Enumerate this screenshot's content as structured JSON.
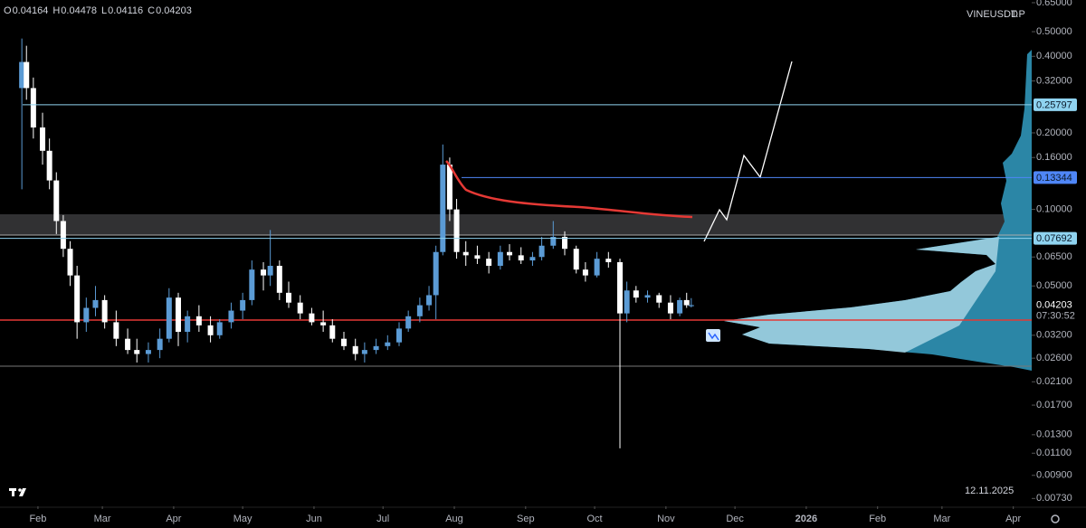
{
  "chart_data": {
    "type": "candlestick",
    "symbol": "VINEUSDT.P",
    "interval": "D",
    "ohlc": [
      {
        "label": "O",
        "value": "0.04164"
      },
      {
        "label": "H",
        "value": "0.04478"
      },
      {
        "label": "L",
        "value": "0.04116"
      },
      {
        "label": "C",
        "value": "0.04203"
      }
    ],
    "log_scale": true,
    "grid": false,
    "series": [
      {
        "up_color": "#5b9bd5",
        "down_color": "#ffffff",
        "x": [
          -7,
          -5,
          -2,
          2,
          5,
          8,
          11,
          14,
          17,
          21,
          25,
          29,
          34,
          39,
          43,
          48,
          53,
          57,
          61,
          65,
          70,
          75,
          79,
          84,
          89,
          93,
          98,
          101,
          105,
          109,
          114,
          119,
          124,
          128,
          133,
          138,
          142,
          147,
          152,
          157,
          161,
          166,
          170,
          173,
          176,
          179,
          182,
          186,
          191,
          196,
          201,
          205,
          210,
          215,
          219,
          224,
          229,
          234,
          238,
          243,
          248,
          253,
          256,
          260,
          265,
          270,
          275,
          279,
          282,
          284
        ],
        "open": [
          0.3,
          0.38,
          0.3,
          0.21,
          0.17,
          0.13,
          0.09,
          0.07,
          0.055,
          0.036,
          0.041,
          0.044,
          0.036,
          0.031,
          0.028,
          0.027,
          0.028,
          0.031,
          0.045,
          0.033,
          0.038,
          0.035,
          0.032,
          0.036,
          0.04,
          0.044,
          0.058,
          0.055,
          0.06,
          0.047,
          0.043,
          0.039,
          0.036,
          0.035,
          0.031,
          0.029,
          0.027,
          0.028,
          0.029,
          0.03,
          0.034,
          0.038,
          0.042,
          0.046,
          0.068,
          0.15,
          0.1,
          0.068,
          0.066,
          0.064,
          0.06,
          0.068,
          0.066,
          0.063,
          0.065,
          0.072,
          0.078,
          0.07,
          0.058,
          0.055,
          0.064,
          0.062,
          0.039,
          0.048,
          0.045,
          0.046,
          0.043,
          0.039,
          0.044,
          0.04164
        ],
        "high": [
          0.47,
          0.44,
          0.33,
          0.24,
          0.19,
          0.14,
          0.095,
          0.075,
          0.06,
          0.045,
          0.05,
          0.046,
          0.04,
          0.034,
          0.031,
          0.03,
          0.034,
          0.049,
          0.047,
          0.04,
          0.042,
          0.038,
          0.037,
          0.043,
          0.047,
          0.063,
          0.062,
          0.083,
          0.063,
          0.052,
          0.046,
          0.041,
          0.04,
          0.037,
          0.033,
          0.031,
          0.03,
          0.031,
          0.032,
          0.036,
          0.04,
          0.045,
          0.05,
          0.072,
          0.18,
          0.16,
          0.11,
          0.075,
          0.072,
          0.068,
          0.072,
          0.073,
          0.071,
          0.068,
          0.078,
          0.09,
          0.082,
          0.072,
          0.062,
          0.068,
          0.068,
          0.064,
          0.052,
          0.05,
          0.048,
          0.047,
          0.046,
          0.045,
          0.047,
          0.04478
        ],
        "low": [
          0.12,
          0.27,
          0.19,
          0.15,
          0.12,
          0.08,
          0.065,
          0.05,
          0.031,
          0.033,
          0.038,
          0.034,
          0.029,
          0.027,
          0.025,
          0.025,
          0.026,
          0.03,
          0.029,
          0.03,
          0.033,
          0.03,
          0.031,
          0.034,
          0.037,
          0.042,
          0.048,
          0.05,
          0.044,
          0.041,
          0.037,
          0.035,
          0.033,
          0.03,
          0.028,
          0.0255,
          0.025,
          0.027,
          0.028,
          0.029,
          0.033,
          0.036,
          0.04,
          0.037,
          0.066,
          0.09,
          0.064,
          0.06,
          0.061,
          0.056,
          0.058,
          0.063,
          0.061,
          0.06,
          0.063,
          0.07,
          0.066,
          0.056,
          0.052,
          0.054,
          0.059,
          0.0115,
          0.036,
          0.043,
          0.043,
          0.041,
          0.037,
          0.038,
          0.041,
          0.04116
        ],
        "close": [
          0.38,
          0.3,
          0.21,
          0.17,
          0.13,
          0.09,
          0.07,
          0.055,
          0.036,
          0.041,
          0.044,
          0.036,
          0.031,
          0.028,
          0.027,
          0.028,
          0.031,
          0.045,
          0.033,
          0.038,
          0.035,
          0.032,
          0.036,
          0.04,
          0.044,
          0.058,
          0.055,
          0.06,
          0.047,
          0.043,
          0.039,
          0.036,
          0.035,
          0.031,
          0.029,
          0.027,
          0.028,
          0.029,
          0.03,
          0.034,
          0.038,
          0.042,
          0.046,
          0.068,
          0.15,
          0.1,
          0.068,
          0.066,
          0.064,
          0.06,
          0.068,
          0.066,
          0.063,
          0.065,
          0.072,
          0.078,
          0.07,
          0.058,
          0.055,
          0.064,
          0.062,
          0.039,
          0.048,
          0.045,
          0.046,
          0.043,
          0.039,
          0.044,
          0.042,
          0.04203
        ]
      }
    ],
    "levels": [
      {
        "value": 0.25797,
        "color": "#8fd3f0"
      },
      {
        "value": 0.13344,
        "color": "#4f86f7"
      },
      {
        "value": 0.07692,
        "color": "#8fd3f0"
      }
    ],
    "countdown": "07:30:52",
    "date": "12.11.2025",
    "xlim": [
      -16.5,
      432
    ],
    "xticks": [
      {
        "value": 0,
        "label": "Feb"
      },
      {
        "value": 28,
        "label": "Mar"
      },
      {
        "value": 59,
        "label": "Apr"
      },
      {
        "value": 89,
        "label": "May"
      },
      {
        "value": 120,
        "label": "Jun"
      },
      {
        "value": 150,
        "label": "Jul"
      },
      {
        "value": 181,
        "label": "Aug"
      },
      {
        "value": 212,
        "label": "Sep"
      },
      {
        "value": 242,
        "label": "Oct"
      },
      {
        "value": 273,
        "label": "Nov"
      },
      {
        "value": 303,
        "label": "Dec"
      },
      {
        "value": 334,
        "label": "2026"
      },
      {
        "value": 365,
        "label": "Feb"
      },
      {
        "value": 393,
        "label": "Mar"
      },
      {
        "value": 424,
        "label": "Apr"
      }
    ],
    "ylim": [
      0.0068,
      0.666
    ],
    "yticks": [
      {
        "value": 0.65,
        "label": "0.65000"
      },
      {
        "value": 0.5,
        "label": "0.50000"
      },
      {
        "value": 0.4,
        "label": "0.40000"
      },
      {
        "value": 0.32,
        "label": "0.32000"
      },
      {
        "value": 0.2,
        "label": "0.20000"
      },
      {
        "value": 0.16,
        "label": "0.16000"
      },
      {
        "value": 0.1,
        "label": "0.10000"
      },
      {
        "value": 0.065,
        "label": "0.06500"
      },
      {
        "value": 0.05,
        "label": "0.05000"
      },
      {
        "value": 0.032,
        "label": "0.03200"
      },
      {
        "value": 0.026,
        "label": "0.02600"
      },
      {
        "value": 0.021,
        "label": "0.02100"
      },
      {
        "value": 0.017,
        "label": "0.01700"
      },
      {
        "value": 0.013,
        "label": "0.01300"
      },
      {
        "value": 0.011,
        "label": "0.01100"
      },
      {
        "value": 0.009,
        "label": "0.00900"
      },
      {
        "value": 0.0073,
        "label": "0.00730"
      }
    ]
  }
}
